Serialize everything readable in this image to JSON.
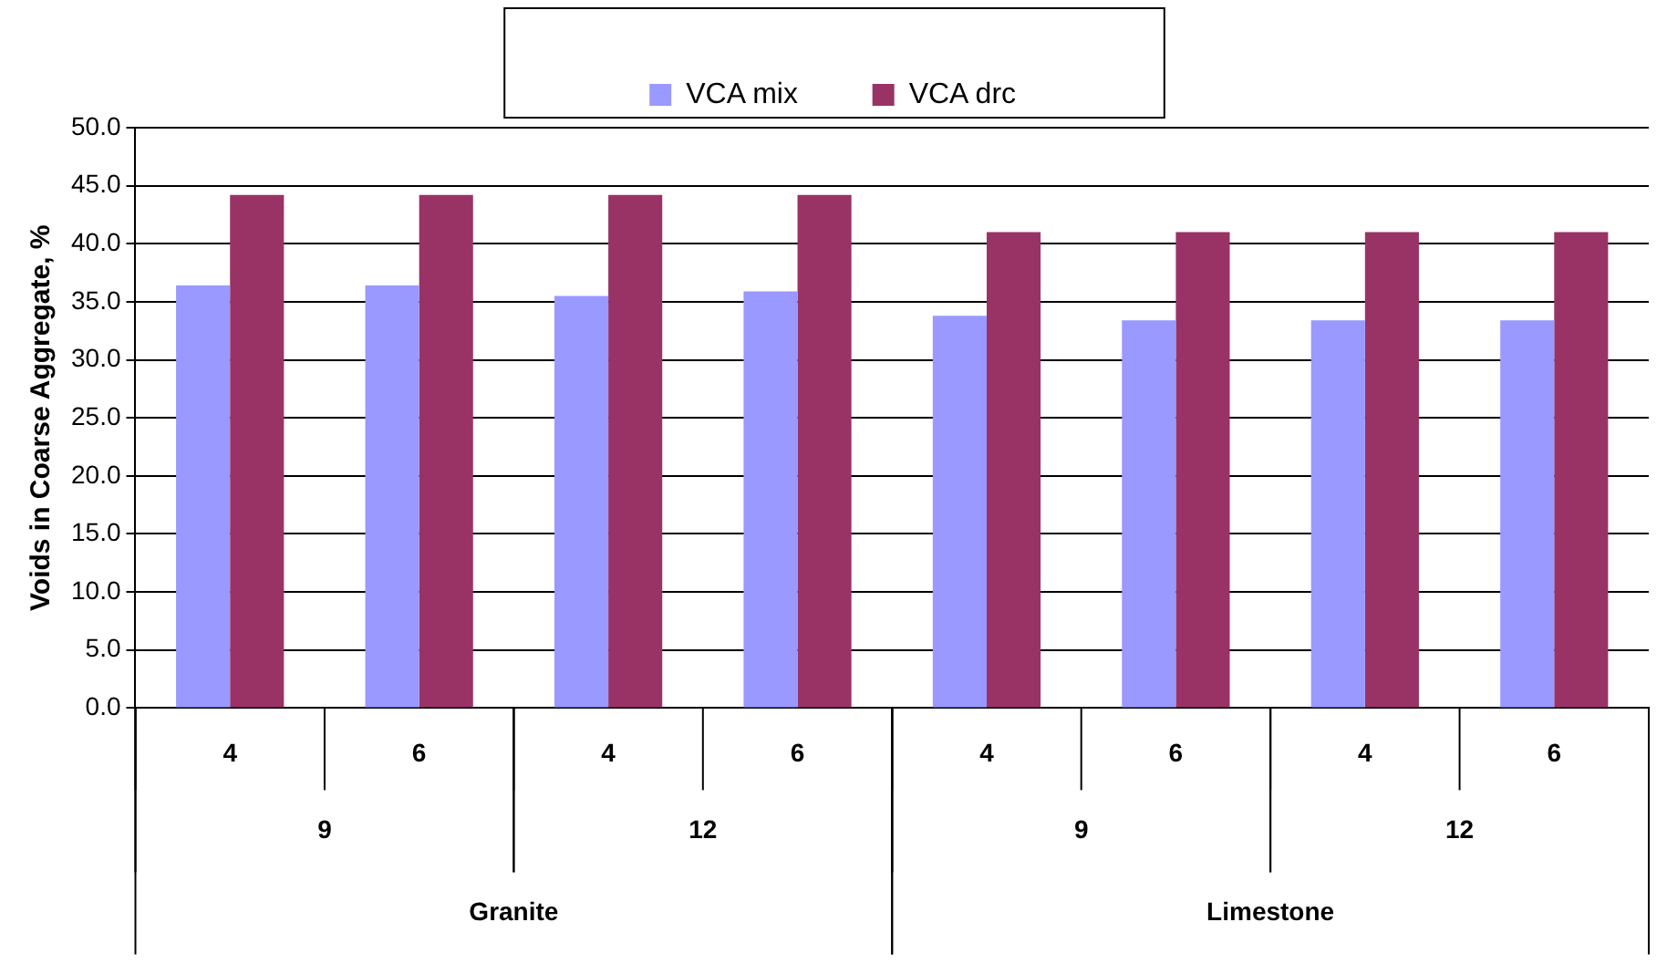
{
  "chart_data": {
    "type": "bar",
    "ylabel": "Voids in Coarse Aggregate, %",
    "categories": [
      "4",
      "6",
      "4",
      "6",
      "4",
      "6",
      "4",
      "6"
    ],
    "series": [
      {
        "name": "VCA mix",
        "color": "#9999ff",
        "values": [
          36.4,
          36.4,
          35.5,
          35.9,
          33.8,
          33.4,
          33.4,
          33.4
        ]
      },
      {
        "name": "VCA drc",
        "color": "#993366",
        "values": [
          44.2,
          44.2,
          44.2,
          44.2,
          41.0,
          41.0,
          41.0,
          41.0
        ]
      }
    ],
    "annotations": [
      "9",
      "12",
      "9",
      "12",
      "Granite",
      "Limestone"
    ],
    "ylim": [
      0,
      50
    ],
    "yticks": [
      {
        "value": 0,
        "label": "0.0"
      },
      {
        "value": 5,
        "label": "5.0"
      },
      {
        "value": 10,
        "label": "10.0"
      },
      {
        "value": 15,
        "label": "15.0"
      },
      {
        "value": 20,
        "label": "20.0"
      },
      {
        "value": 25,
        "label": "25.0"
      },
      {
        "value": 30,
        "label": "30.0"
      },
      {
        "value": 35,
        "label": "35.0"
      },
      {
        "value": 40,
        "label": "40.0"
      },
      {
        "value": 45,
        "label": "45.0"
      },
      {
        "value": 50,
        "label": "50.0"
      }
    ],
    "grid": "y",
    "legend": "top"
  }
}
